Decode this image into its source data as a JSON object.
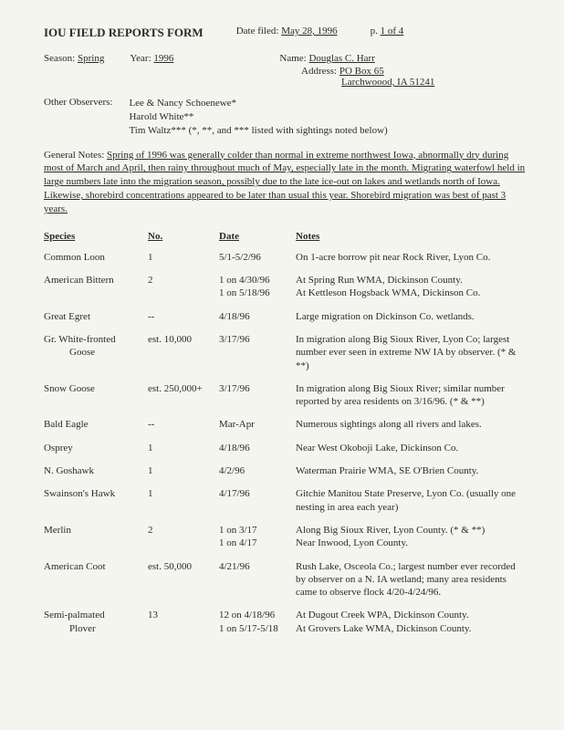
{
  "header": {
    "title": "IOU FIELD REPORTS FORM",
    "date_label": "Date filed:",
    "date_value": "May 28, 1996",
    "page_label": "p.",
    "page_value": "1 of 4"
  },
  "info": {
    "season_label": "Season:",
    "season_value": "Spring",
    "year_label": "Year:",
    "year_value": "1996",
    "name_label": "Name:",
    "name_value": "Douglas C. Harr",
    "addr_label": "Address:",
    "addr_value": "PO Box 65",
    "addr_city": "Larchwoood, IA  51241"
  },
  "observers": {
    "label": "Other Observers:",
    "l1": "Lee & Nancy Schoenewe*",
    "l2": "Harold White**",
    "l3": "Tim Waltz*** (*, **, and *** listed with sightings noted below)"
  },
  "notes": {
    "label": "General Notes:",
    "body": "Spring of 1996 was generally colder than normal in extreme northwest Iowa, abnormally dry during most of March and April, then rainy throughout much of May, especially late in the month. Migrating waterfowl held in large numbers late into the migration season, possibly due to the late ice-out on lakes and wetlands north of Iowa.  Likewise, shorebird concentrations appeared to be later than usual this year.  Shorebird migration was best of past 3 years."
  },
  "cols": {
    "sp": "Species",
    "no": "No.",
    "dt": "Date",
    "nt": "Notes"
  },
  "rows": [
    {
      "sp": "Common Loon",
      "no": "1",
      "dt": "5/1-5/2/96",
      "nt": "On 1-acre borrow pit near Rock River, Lyon Co."
    },
    {
      "sp": "American Bittern",
      "no": "2",
      "dt": "1 on 4/30/96",
      "nt": "At Spring Run WMA, Dickinson County.",
      "dt2": "1 on 5/18/96",
      "nt2": "At Kettleson Hogsback WMA, Dickinson Co."
    },
    {
      "sp": "Great Egret",
      "no": "--",
      "dt": "4/18/96",
      "nt": "Large migration on Dickinson Co. wetlands."
    },
    {
      "sp": "Gr. White-fronted",
      "sp2": "Goose",
      "no": "est. 10,000",
      "dt": "3/17/96",
      "nt": "In migration along Big Sioux River, Lyon Co; largest number ever seen in  extreme NW IA by observer. (* & **)"
    },
    {
      "sp": "Snow Goose",
      "no": "est. 250,000+",
      "dt": "3/17/96",
      "nt": "In migration along Big Sioux River; similar number reported by area residents on 3/16/96. (* & **)"
    },
    {
      "sp": "Bald Eagle",
      "no": "--",
      "dt": "Mar-Apr",
      "nt": "Numerous sightings along all rivers and lakes."
    },
    {
      "sp": "Osprey",
      "no": "1",
      "dt": "4/18/96",
      "nt": "Near West Okoboji Lake, Dickinson Co."
    },
    {
      "sp": "N. Goshawk",
      "no": "1",
      "dt": "4/2/96",
      "nt": "Waterman Prairie WMA, SE O'Brien County."
    },
    {
      "sp": "Swainson's Hawk",
      "no": "1",
      "dt": "4/17/96",
      "nt": "Gitchie Manitou State Preserve, Lyon Co. (usually one nesting in area each year)",
      "nt_indent": true
    },
    {
      "sp": "Merlin",
      "no": "2",
      "dt": "1 on 3/17",
      "nt": "Along Big Sioux River, Lyon County. (* & **)",
      "dt2": "1 on 4/17",
      "nt2": "Near Inwood, Lyon County."
    },
    {
      "sp": "American Coot",
      "no": "est. 50,000",
      "dt": "4/21/96",
      "nt": "Rush Lake, Osceola Co.; largest number ever recorded by observer on a N. IA wetland; many area residents came to observe flock 4/20-4/24/96."
    },
    {
      "sp": "Semi-palmated",
      "sp2": "Plover",
      "no": "13",
      "dt": "12 on 4/18/96",
      "nt": "At Dugout Creek WPA, Dickinson County.",
      "dt2": "1 on 5/17-5/18",
      "nt2": "At Grovers Lake WMA, Dickinson County."
    }
  ]
}
